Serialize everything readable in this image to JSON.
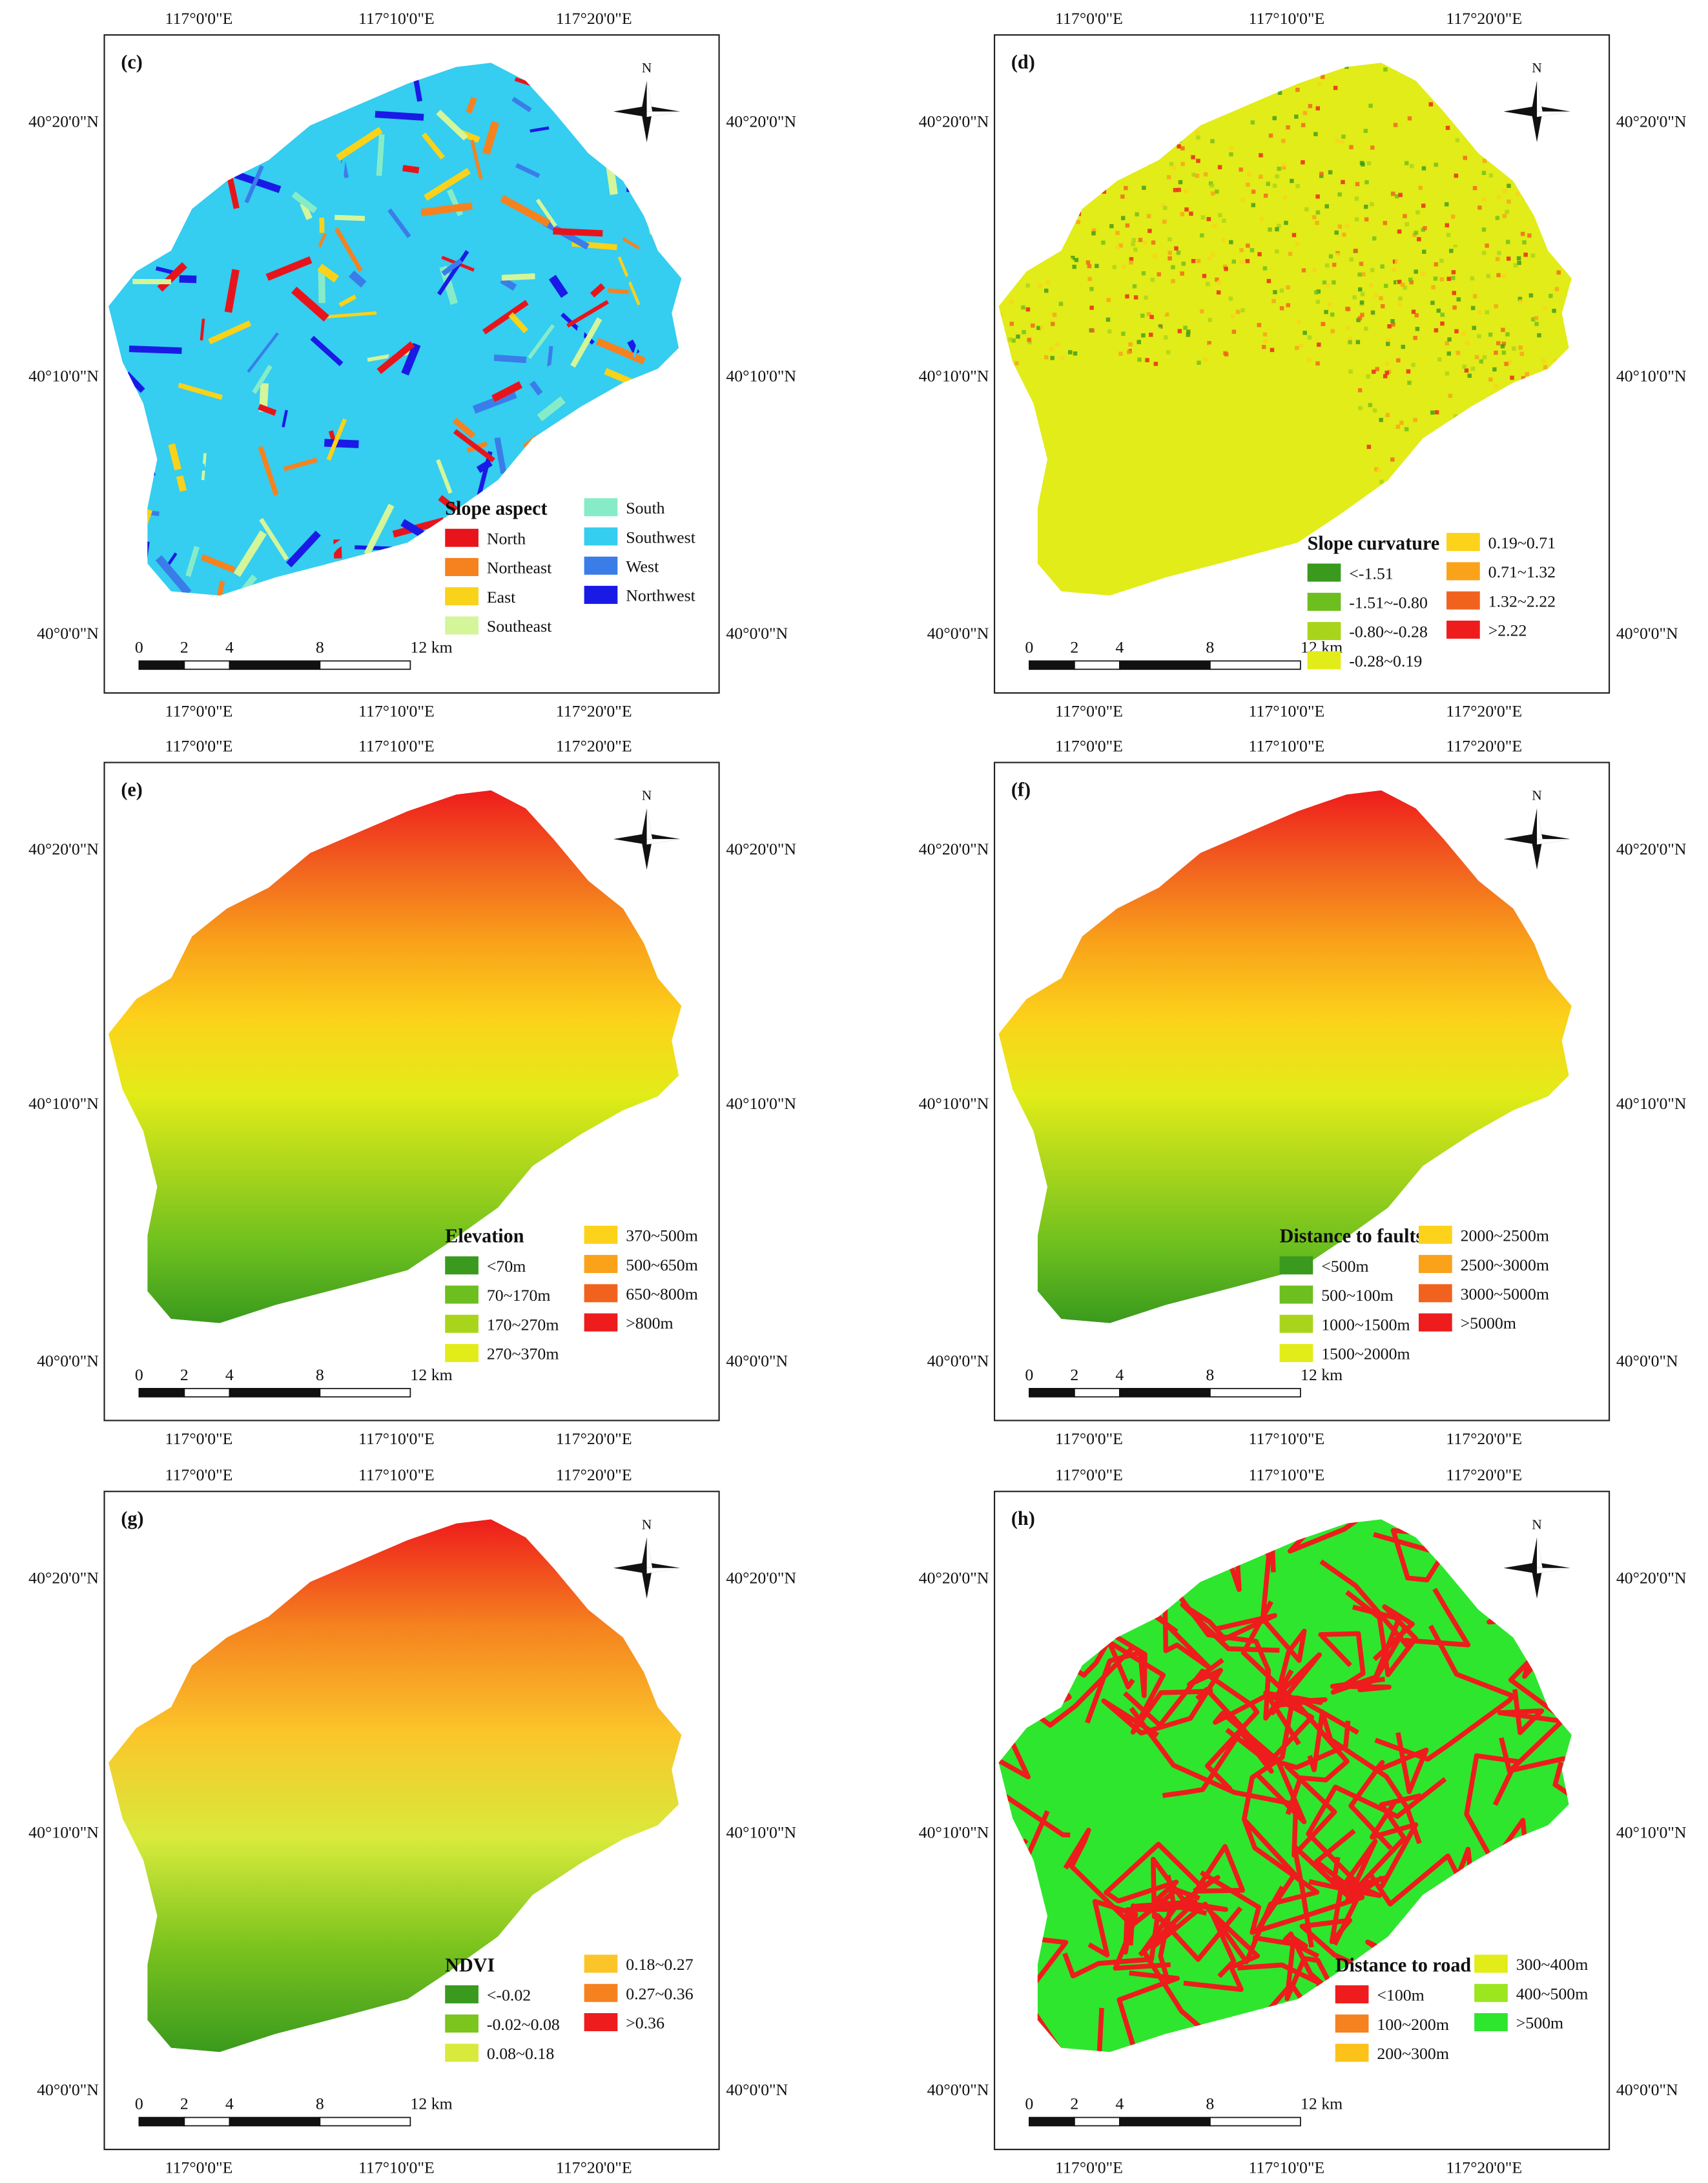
{
  "panels": [
    {
      "id": "(c)",
      "style": "stripes",
      "legend_title": "Slope aspect",
      "legend_items": [
        {
          "label": "North",
          "color": "#e8141b"
        },
        {
          "label": "Northeast",
          "color": "#f5821f"
        },
        {
          "label": "East",
          "color": "#f9d21a"
        },
        {
          "label": "Southeast",
          "color": "#d4f59a"
        },
        {
          "label": "South",
          "color": "#86ecc8"
        },
        {
          "label": "Southwest",
          "color": "#35cdf0"
        },
        {
          "label": "West",
          "color": "#3a7de8"
        },
        {
          "label": "Northwest",
          "color": "#1a1ae6"
        }
      ],
      "top_lon": [
        "117°0'0\"E",
        "117°10'0\"E",
        "117°20'0\"E"
      ],
      "bottom_lon": [
        "117°0'0\"E",
        "117°10'0\"E",
        "117°20'0\"E"
      ],
      "left_lat": [
        "40°20'0\"N",
        "40°10'0\"N",
        "40°0'0\"N"
      ],
      "right_lat": [
        "40°20'0\"N",
        "40°10'0\"N",
        "40°0'0\"N"
      ],
      "scale": [
        "0",
        "2",
        "4",
        "8",
        "12 km"
      ],
      "north": "N"
    },
    {
      "id": "(d)",
      "style": "speckle",
      "legend_title": "Slope curvature",
      "legend_items": [
        {
          "label": "<-1.51",
          "color": "#3a9a1d"
        },
        {
          "label": "-1.51~-0.80",
          "color": "#6cbf1e"
        },
        {
          "label": "-0.80~-0.28",
          "color": "#a8d51c"
        },
        {
          "label": "-0.28~0.19",
          "color": "#e2ec18"
        },
        {
          "label": "0.19~0.71",
          "color": "#fcd21a"
        },
        {
          "label": "0.71~1.32",
          "color": "#f9a21a"
        },
        {
          "label": "1.32~2.22",
          "color": "#f2621f"
        },
        {
          "label": ">2.22",
          "color": "#ee1c1c"
        }
      ],
      "top_lon": [
        "117°0'0\"E",
        "117°10'0\"E",
        "117°20'0\"E"
      ],
      "bottom_lon": [
        "117°0'0\"E",
        "117°10'0\"E",
        "117°20'0\"E"
      ],
      "left_lat": [
        "40°20'0\"N",
        "40°10'0\"N",
        "40°0'0\"N"
      ],
      "right_lat": [
        "40°20'0\"N",
        "40°10'0\"N",
        "40°0'0\"N"
      ],
      "scale": [
        "0",
        "2",
        "4",
        "8",
        "12 km"
      ],
      "north": "N"
    },
    {
      "id": "(e)",
      "style": "gradient",
      "legend_title": "Elevation",
      "legend_items": [
        {
          "label": "<70m",
          "color": "#3a9a1d"
        },
        {
          "label": "70~170m",
          "color": "#6cbf1e"
        },
        {
          "label": "170~270m",
          "color": "#a8d51c"
        },
        {
          "label": "270~370m",
          "color": "#e2ec18"
        },
        {
          "label": "370~500m",
          "color": "#fcd21a"
        },
        {
          "label": "500~650m",
          "color": "#f9a21a"
        },
        {
          "label": "650~800m",
          "color": "#f2621f"
        },
        {
          "label": ">800m",
          "color": "#ee1c1c"
        }
      ],
      "top_lon": [
        "117°0'0\"E",
        "117°10'0\"E",
        "117°20'0\"E"
      ],
      "bottom_lon": [
        "117°0'0\"E",
        "117°10'0\"E",
        "117°20'0\"E"
      ],
      "left_lat": [
        "40°20'0\"N",
        "40°10'0\"N",
        "40°0'0\"N"
      ],
      "right_lat": [
        "40°20'0\"N",
        "40°10'0\"N",
        "40°0'0\"N"
      ],
      "scale": [
        "0",
        "2",
        "4",
        "8",
        "12 km"
      ],
      "north": "N"
    },
    {
      "id": "(f)",
      "style": "gradient",
      "legend_title": "Distance to faults",
      "legend_items": [
        {
          "label": "<500m",
          "color": "#3a9a1d"
        },
        {
          "label": "500~100m",
          "color": "#6cbf1e"
        },
        {
          "label": "1000~1500m",
          "color": "#a8d51c"
        },
        {
          "label": "1500~2000m",
          "color": "#e2ec18"
        },
        {
          "label": "2000~2500m",
          "color": "#fcd21a"
        },
        {
          "label": "2500~3000m",
          "color": "#f9a21a"
        },
        {
          "label": "3000~5000m",
          "color": "#f2621f"
        },
        {
          "label": ">5000m",
          "color": "#ee1c1c"
        }
      ],
      "top_lon": [
        "117°0'0\"E",
        "117°10'0\"E",
        "117°20'0\"E"
      ],
      "bottom_lon": [
        "117°0'0\"E",
        "117°10'0\"E",
        "117°20'0\"E"
      ],
      "left_lat": [
        "40°20'0\"N",
        "40°10'0\"N",
        "40°0'0\"N"
      ],
      "right_lat": [
        "40°20'0\"N",
        "40°10'0\"N",
        "40°0'0\"N"
      ],
      "scale": [
        "0",
        "2",
        "4",
        "8",
        "12 km"
      ],
      "north": "N"
    },
    {
      "id": "(g)",
      "style": "gradient",
      "legend_title": "NDVI",
      "legend_items": [
        {
          "label": "<-0.02",
          "color": "#3a9a1d"
        },
        {
          "label": "-0.02~0.08",
          "color": "#7cc41e"
        },
        {
          "label": "0.08~0.18",
          "color": "#d8ea3c"
        },
        {
          "label": "0.18~0.27",
          "color": "#fbc52a"
        },
        {
          "label": "0.27~0.36",
          "color": "#f5821f"
        },
        {
          "label": ">0.36",
          "color": "#ee1c1c"
        }
      ],
      "top_lon": [
        "117°0'0\"E",
        "117°10'0\"E",
        "117°20'0\"E"
      ],
      "bottom_lon": [
        "117°0'0\"E",
        "117°10'0\"E",
        "117°20'0\"E"
      ],
      "left_lat": [
        "40°20'0\"N",
        "40°10'0\"N",
        "40°0'0\"N"
      ],
      "right_lat": [
        "40°20'0\"N",
        "40°10'0\"N",
        "40°0'0\"N"
      ],
      "scale": [
        "0",
        "2",
        "4",
        "8",
        "12 km"
      ],
      "north": "N"
    },
    {
      "id": "(h)",
      "style": "roads",
      "legend_title": "Distance to road",
      "legend_items": [
        {
          "label": "<100m",
          "color": "#ee1c1c"
        },
        {
          "label": "100~200m",
          "color": "#f5821f"
        },
        {
          "label": "200~300m",
          "color": "#fcc21a"
        },
        {
          "label": "300~400m",
          "color": "#e2ec18"
        },
        {
          "label": "400~500m",
          "color": "#9be61e"
        },
        {
          "label": ">500m",
          "color": "#2ee62e"
        }
      ],
      "top_lon": [
        "117°0'0\"E",
        "117°10'0\"E",
        "117°20'0\"E"
      ],
      "bottom_lon": [
        "117°0'0\"E",
        "117°10'0\"E",
        "117°20'0\"E"
      ],
      "left_lat": [
        "40°20'0\"N",
        "40°10'0\"N",
        "40°0'0\"N"
      ],
      "right_lat": [
        "40°20'0\"N",
        "40°10'0\"N",
        "40°0'0\"N"
      ],
      "scale": [
        "0",
        "2",
        "4",
        "8",
        "12 km"
      ],
      "north": "N"
    }
  ]
}
